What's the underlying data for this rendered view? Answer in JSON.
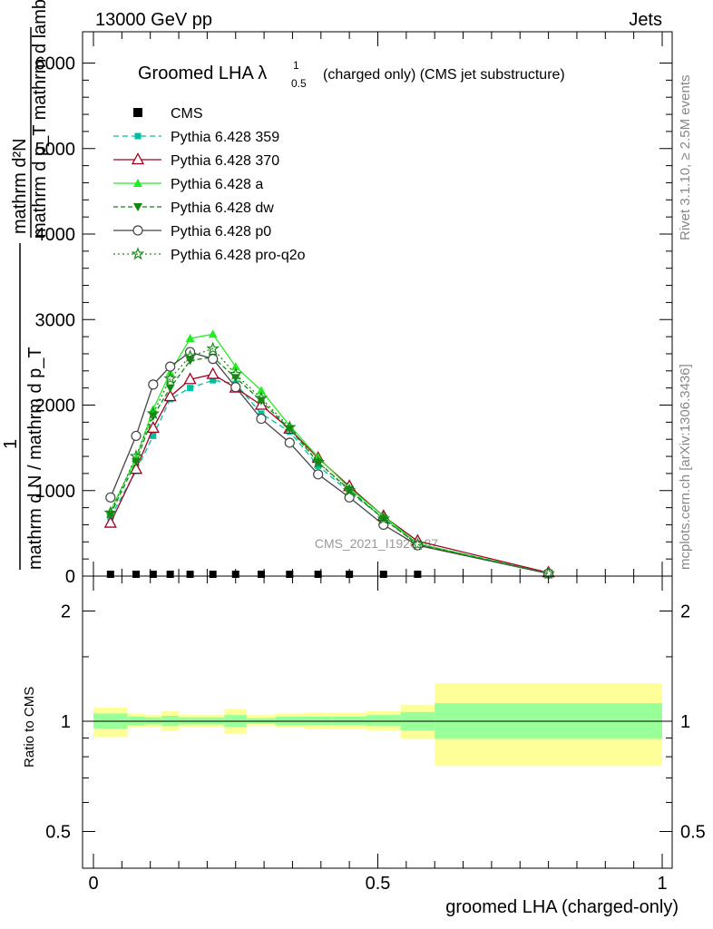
{
  "header": {
    "left": "13000 GeV pp",
    "right": "Jets"
  },
  "side_labels": {
    "rivet": "Rivet 3.1.10, ≥ 2.5M events",
    "mcplots": "mcplots.cern.ch [arXiv:1306.3436]"
  },
  "watermark": "CMS_2021_I1920187",
  "chart_data": [
    {
      "type": "line",
      "title": "Groomed LHA λ",
      "title_sup": "1",
      "title_sub": "0.5",
      "subtitle": "(charged only) (CMS jet substructure)",
      "ylabel_top": "mathrm d²N",
      "ylabel_top2": "mathrm d p_T mathrm d lambda",
      "ylabel_bottom": "mathrm d N / mathrm d p_T",
      "ylabel_one": "1",
      "xlim": [
        0,
        1
      ],
      "ylim": [
        0,
        6200
      ],
      "yticks": [
        {
          "v": 0,
          "label": "0"
        },
        {
          "v": 1000,
          "label": "1000"
        },
        {
          "v": 2000,
          "label": "2000"
        },
        {
          "v": 3000,
          "label": "3000"
        },
        {
          "v": 4000,
          "label": "4000"
        },
        {
          "v": 5000,
          "label": "5000"
        },
        {
          "v": 6000,
          "label": "6000"
        }
      ],
      "x": [
        0.03,
        0.075,
        0.105,
        0.135,
        0.17,
        0.21,
        0.25,
        0.295,
        0.345,
        0.395,
        0.45,
        0.51,
        0.57,
        0.8
      ],
      "cms_x": [
        0.03,
        0.075,
        0.105,
        0.135,
        0.17,
        0.21,
        0.25,
        0.295,
        0.345,
        0.395,
        0.45,
        0.51,
        0.57
      ],
      "cms_y": [
        0,
        0,
        0,
        0,
        0,
        0,
        0,
        0,
        0,
        0,
        0,
        0,
        0
      ],
      "series": [
        {
          "name": "CMS",
          "color": "#000000",
          "marker": "square",
          "dash": "none"
        },
        {
          "name": "Pythia 6.428 359",
          "color": "#00c0a0",
          "marker": "smallsquare",
          "dash": "6,4",
          "values": [
            690,
            1230,
            1640,
            2070,
            2200,
            2290,
            2250,
            1900,
            1690,
            1290,
            980,
            680,
            380,
            35
          ]
        },
        {
          "name": "Pythia 6.428 370",
          "color": "#a00020",
          "marker": "opentriangle",
          "dash": "none",
          "values": [
            620,
            1250,
            1730,
            2100,
            2300,
            2360,
            2200,
            2000,
            1720,
            1380,
            1050,
            700,
            410,
            40
          ]
        },
        {
          "name": "Pythia 6.428 a",
          "color": "#22ee22",
          "marker": "triangle",
          "dash": "none",
          "values": [
            760,
            1380,
            1950,
            2380,
            2780,
            2830,
            2450,
            2170,
            1760,
            1390,
            1030,
            700,
            380,
            30
          ]
        },
        {
          "name": "Pythia 6.428 dw",
          "color": "#108810",
          "marker": "downtriangle",
          "dash": "5,3",
          "values": [
            720,
            1340,
            1870,
            2200,
            2520,
            2560,
            2320,
            2050,
            1720,
            1330,
            1010,
            670,
            370,
            30
          ]
        },
        {
          "name": "Pythia 6.428 p0",
          "color": "#444444",
          "marker": "opencircle",
          "dash": "none",
          "values": [
            920,
            1640,
            2240,
            2450,
            2620,
            2540,
            2210,
            1840,
            1560,
            1190,
            920,
            600,
            360,
            30
          ]
        },
        {
          "name": "Pythia 6.428 pro-q2o",
          "color": "#208820",
          "marker": "star",
          "dash": "2,3",
          "values": [
            740,
            1400,
            1900,
            2310,
            2570,
            2660,
            2360,
            2080,
            1740,
            1330,
            1000,
            670,
            370,
            30
          ]
        }
      ]
    },
    {
      "type": "area",
      "ylabel": "Ratio to CMS",
      "xlabel": "groomed LHA (charged-only)",
      "xlim": [
        0,
        1
      ],
      "yticks": [
        {
          "v": 0.5,
          "label": "0.5"
        },
        {
          "v": 1,
          "label": "1"
        },
        {
          "v": 2,
          "label": "2"
        }
      ],
      "xticks": [
        {
          "v": 0,
          "label": "0"
        },
        {
          "v": 0.5,
          "label": "0.5"
        },
        {
          "v": 1,
          "label": "1"
        }
      ],
      "bins": [
        {
          "x0": 0.0,
          "x1": 0.06,
          "stat": [
            0.955,
            1.05
          ],
          "tot": [
            0.905,
            1.09
          ]
        },
        {
          "x0": 0.06,
          "x1": 0.09,
          "stat": [
            0.975,
            1.03
          ],
          "tot": [
            0.96,
            1.05
          ]
        },
        {
          "x0": 0.09,
          "x1": 0.12,
          "stat": [
            0.98,
            1.025
          ],
          "tot": [
            0.965,
            1.04
          ]
        },
        {
          "x0": 0.12,
          "x1": 0.15,
          "stat": [
            0.97,
            1.035
          ],
          "tot": [
            0.94,
            1.065
          ]
        },
        {
          "x0": 0.15,
          "x1": 0.19,
          "stat": [
            0.98,
            1.025
          ],
          "tot": [
            0.965,
            1.04
          ]
        },
        {
          "x0": 0.19,
          "x1": 0.23,
          "stat": [
            0.98,
            1.025
          ],
          "tot": [
            0.965,
            1.04
          ]
        },
        {
          "x0": 0.23,
          "x1": 0.27,
          "stat": [
            0.965,
            1.04
          ],
          "tot": [
            0.925,
            1.08
          ]
        },
        {
          "x0": 0.27,
          "x1": 0.32,
          "stat": [
            0.985,
            1.02
          ],
          "tot": [
            0.97,
            1.04
          ]
        },
        {
          "x0": 0.32,
          "x1": 0.37,
          "stat": [
            0.975,
            1.03
          ],
          "tot": [
            0.96,
            1.05
          ]
        },
        {
          "x0": 0.37,
          "x1": 0.42,
          "stat": [
            0.975,
            1.03
          ],
          "tot": [
            0.955,
            1.055
          ]
        },
        {
          "x0": 0.42,
          "x1": 0.48,
          "stat": [
            0.975,
            1.03
          ],
          "tot": [
            0.955,
            1.055
          ]
        },
        {
          "x0": 0.48,
          "x1": 0.54,
          "stat": [
            0.97,
            1.04
          ],
          "tot": [
            0.945,
            1.065
          ]
        },
        {
          "x0": 0.54,
          "x1": 0.6,
          "stat": [
            0.945,
            1.06
          ],
          "tot": [
            0.895,
            1.11
          ]
        },
        {
          "x0": 0.6,
          "x1": 1.0,
          "stat": [
            0.895,
            1.12
          ],
          "tot": [
            0.755,
            1.27
          ]
        }
      ],
      "colors": {
        "stat": "#99ff99",
        "tot": "#ffff99"
      }
    }
  ]
}
